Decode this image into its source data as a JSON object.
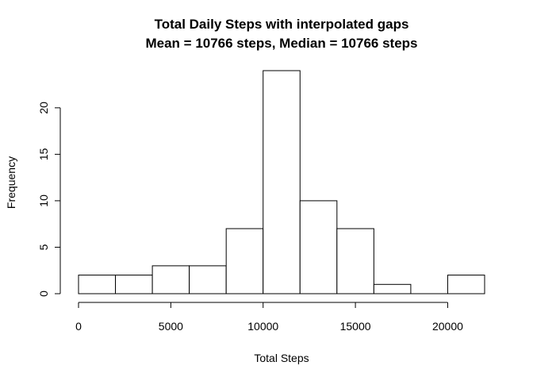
{
  "chart_data": {
    "type": "bar",
    "title": "Total Daily Steps with interpolated gaps",
    "subtitle": "Mean = 10766 steps, Median = 10766 steps",
    "xlabel": "Total Steps",
    "ylabel": "Frequency",
    "bins": [
      {
        "start": 0,
        "end": 2000,
        "count": 2
      },
      {
        "start": 2000,
        "end": 4000,
        "count": 2
      },
      {
        "start": 4000,
        "end": 6000,
        "count": 3
      },
      {
        "start": 6000,
        "end": 8000,
        "count": 3
      },
      {
        "start": 8000,
        "end": 10000,
        "count": 7
      },
      {
        "start": 10000,
        "end": 12000,
        "count": 24
      },
      {
        "start": 12000,
        "end": 14000,
        "count": 10
      },
      {
        "start": 14000,
        "end": 16000,
        "count": 7
      },
      {
        "start": 16000,
        "end": 18000,
        "count": 1
      },
      {
        "start": 18000,
        "end": 20000,
        "count": 0
      },
      {
        "start": 20000,
        "end": 22000,
        "count": 2
      }
    ],
    "xticks": [
      0,
      5000,
      10000,
      15000,
      20000
    ],
    "yticks": [
      0,
      5,
      10,
      15,
      20
    ],
    "xlim": [
      0,
      22000
    ],
    "ylim": [
      0,
      24
    ],
    "grid": false,
    "bar_color": "#ffffff",
    "border_color": "#000000"
  }
}
